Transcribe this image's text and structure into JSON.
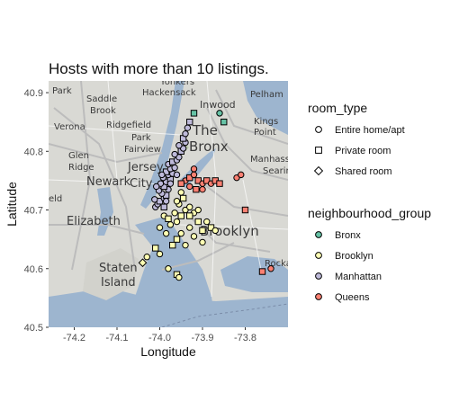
{
  "chart_data": {
    "type": "scatter",
    "title": "Hosts with more than 10 listings.",
    "xlabel": "Longitude",
    "ylabel": "Latitude",
    "xlim": [
      -74.26,
      -73.7
    ],
    "ylim": [
      40.5,
      40.92
    ],
    "x_ticks": [
      -74.2,
      -74.1,
      -74.0,
      -73.9,
      -73.8
    ],
    "x_tick_labels": [
      "-74.2",
      "-74.1",
      "-74.0",
      "-73.9",
      "-73.8"
    ],
    "y_ticks": [
      40.5,
      40.6,
      40.7,
      40.8,
      40.9
    ],
    "y_tick_labels": [
      "40.5",
      "40.6",
      "40.7",
      "40.8",
      "40.9"
    ],
    "grid": false,
    "background": "street map",
    "legend_position": "right",
    "legends": [
      {
        "title": "room_type",
        "kind": "shape",
        "entries": [
          {
            "label": "Entire home/apt",
            "shape": "circle"
          },
          {
            "label": "Private room",
            "shape": "square"
          },
          {
            "label": "Shared room",
            "shape": "diamond"
          }
        ]
      },
      {
        "title": "neighbourhood_group",
        "kind": "color",
        "entries": [
          {
            "label": "Bronx",
            "color": "#66c2a5"
          },
          {
            "label": "Brooklyn",
            "color": "#ffffb3"
          },
          {
            "label": "Manhattan",
            "color": "#bebada"
          },
          {
            "label": "Queens",
            "color": "#fb8072"
          }
        ]
      }
    ],
    "series": [
      {
        "name": "Manhattan",
        "color": "#bebada",
        "points": [
          {
            "x": -74.01,
            "y": 40.705,
            "shape": "circle"
          },
          {
            "x": -74.005,
            "y": 40.71,
            "shape": "circle"
          },
          {
            "x": -74.0,
            "y": 40.715,
            "shape": "square"
          },
          {
            "x": -74.012,
            "y": 40.718,
            "shape": "circle"
          },
          {
            "x": -73.99,
            "y": 40.72,
            "shape": "circle"
          },
          {
            "x": -73.985,
            "y": 40.725,
            "shape": "square"
          },
          {
            "x": -73.995,
            "y": 40.728,
            "shape": "circle"
          },
          {
            "x": -74.002,
            "y": 40.733,
            "shape": "circle"
          },
          {
            "x": -73.98,
            "y": 40.735,
            "shape": "circle"
          },
          {
            "x": -73.99,
            "y": 40.74,
            "shape": "square"
          },
          {
            "x": -73.998,
            "y": 40.745,
            "shape": "circle"
          },
          {
            "x": -73.985,
            "y": 40.748,
            "shape": "circle"
          },
          {
            "x": -73.975,
            "y": 40.752,
            "shape": "square"
          },
          {
            "x": -73.992,
            "y": 40.755,
            "shape": "circle"
          },
          {
            "x": -73.98,
            "y": 40.76,
            "shape": "circle"
          },
          {
            "x": -73.97,
            "y": 40.762,
            "shape": "circle"
          },
          {
            "x": -73.985,
            "y": 40.765,
            "shape": "square"
          },
          {
            "x": -73.975,
            "y": 40.77,
            "shape": "circle"
          },
          {
            "x": -73.965,
            "y": 40.772,
            "shape": "circle"
          },
          {
            "x": -73.98,
            "y": 40.778,
            "shape": "circle"
          },
          {
            "x": -73.97,
            "y": 40.782,
            "shape": "square"
          },
          {
            "x": -73.96,
            "y": 40.785,
            "shape": "circle"
          },
          {
            "x": -73.955,
            "y": 40.79,
            "shape": "circle"
          },
          {
            "x": -73.965,
            "y": 40.795,
            "shape": "circle"
          },
          {
            "x": -73.95,
            "y": 40.8,
            "shape": "square"
          },
          {
            "x": -73.945,
            "y": 40.805,
            "shape": "circle"
          },
          {
            "x": -73.955,
            "y": 40.81,
            "shape": "circle"
          },
          {
            "x": -73.94,
            "y": 40.815,
            "shape": "circle"
          },
          {
            "x": -73.945,
            "y": 40.822,
            "shape": "square"
          },
          {
            "x": -73.94,
            "y": 40.83,
            "shape": "circle"
          },
          {
            "x": -73.935,
            "y": 40.84,
            "shape": "circle"
          },
          {
            "x": -73.93,
            "y": 40.85,
            "shape": "square"
          },
          {
            "x": -73.975,
            "y": 40.745,
            "shape": "circle"
          },
          {
            "x": -73.96,
            "y": 40.76,
            "shape": "circle"
          },
          {
            "x": -73.99,
            "y": 40.705,
            "shape": "square"
          },
          {
            "x": -73.985,
            "y": 40.715,
            "shape": "circle"
          },
          {
            "x": -73.995,
            "y": 40.76,
            "shape": "circle"
          },
          {
            "x": -74.008,
            "y": 40.74,
            "shape": "circle"
          }
        ]
      },
      {
        "name": "Brooklyn",
        "color": "#ffffb3",
        "points": [
          {
            "x": -73.99,
            "y": 40.69,
            "shape": "circle"
          },
          {
            "x": -73.98,
            "y": 40.685,
            "shape": "square"
          },
          {
            "x": -73.975,
            "y": 40.675,
            "shape": "circle"
          },
          {
            "x": -73.96,
            "y": 40.68,
            "shape": "circle"
          },
          {
            "x": -73.95,
            "y": 40.69,
            "shape": "square"
          },
          {
            "x": -73.94,
            "y": 40.7,
            "shape": "circle"
          },
          {
            "x": -73.955,
            "y": 40.71,
            "shape": "circle"
          },
          {
            "x": -73.945,
            "y": 40.72,
            "shape": "square"
          },
          {
            "x": -73.93,
            "y": 40.705,
            "shape": "circle"
          },
          {
            "x": -73.92,
            "y": 40.695,
            "shape": "circle"
          },
          {
            "x": -73.91,
            "y": 40.68,
            "shape": "square"
          },
          {
            "x": -73.93,
            "y": 40.67,
            "shape": "circle"
          },
          {
            "x": -73.95,
            "y": 40.66,
            "shape": "circle"
          },
          {
            "x": -73.96,
            "y": 40.65,
            "shape": "square"
          },
          {
            "x": -73.985,
            "y": 40.66,
            "shape": "circle"
          },
          {
            "x": -74.0,
            "y": 40.67,
            "shape": "circle"
          },
          {
            "x": -73.97,
            "y": 40.64,
            "shape": "square"
          },
          {
            "x": -73.94,
            "y": 40.64,
            "shape": "circle"
          },
          {
            "x": -73.92,
            "y": 40.655,
            "shape": "circle"
          },
          {
            "x": -73.9,
            "y": 40.665,
            "shape": "square"
          },
          {
            "x": -73.89,
            "y": 40.68,
            "shape": "circle"
          },
          {
            "x": -73.91,
            "y": 40.7,
            "shape": "circle"
          },
          {
            "x": -73.88,
            "y": 40.67,
            "shape": "square"
          },
          {
            "x": -73.87,
            "y": 40.665,
            "shape": "circle"
          },
          {
            "x": -73.95,
            "y": 40.73,
            "shape": "circle"
          },
          {
            "x": -73.96,
            "y": 40.715,
            "shape": "circle"
          },
          {
            "x": -74.01,
            "y": 40.635,
            "shape": "square"
          },
          {
            "x": -74.0,
            "y": 40.625,
            "shape": "circle"
          },
          {
            "x": -74.03,
            "y": 40.62,
            "shape": "circle"
          },
          {
            "x": -74.04,
            "y": 40.61,
            "shape": "diamond"
          },
          {
            "x": -73.98,
            "y": 40.6,
            "shape": "circle"
          },
          {
            "x": -73.96,
            "y": 40.59,
            "shape": "square"
          },
          {
            "x": -73.955,
            "y": 40.585,
            "shape": "circle"
          },
          {
            "x": -73.9,
            "y": 40.645,
            "shape": "circle"
          },
          {
            "x": -73.93,
            "y": 40.69,
            "shape": "square"
          },
          {
            "x": -73.965,
            "y": 40.695,
            "shape": "circle"
          }
        ]
      },
      {
        "name": "Queens",
        "color": "#fb8072",
        "points": [
          {
            "x": -73.94,
            "y": 40.75,
            "shape": "circle"
          },
          {
            "x": -73.93,
            "y": 40.755,
            "shape": "square"
          },
          {
            "x": -73.92,
            "y": 40.76,
            "shape": "circle"
          },
          {
            "x": -73.91,
            "y": 40.75,
            "shape": "square"
          },
          {
            "x": -73.9,
            "y": 40.745,
            "shape": "circle"
          },
          {
            "x": -73.89,
            "y": 40.75,
            "shape": "square"
          },
          {
            "x": -73.88,
            "y": 40.745,
            "shape": "circle"
          },
          {
            "x": -73.87,
            "y": 40.75,
            "shape": "square"
          },
          {
            "x": -73.93,
            "y": 40.74,
            "shape": "circle"
          },
          {
            "x": -73.915,
            "y": 40.735,
            "shape": "square"
          },
          {
            "x": -73.9,
            "y": 40.735,
            "shape": "circle"
          },
          {
            "x": -73.86,
            "y": 40.745,
            "shape": "square"
          },
          {
            "x": -73.82,
            "y": 40.755,
            "shape": "circle"
          },
          {
            "x": -73.81,
            "y": 40.76,
            "shape": "circle"
          },
          {
            "x": -73.8,
            "y": 40.7,
            "shape": "square"
          },
          {
            "x": -73.76,
            "y": 40.595,
            "shape": "square"
          },
          {
            "x": -73.74,
            "y": 40.6,
            "shape": "circle"
          },
          {
            "x": -73.92,
            "y": 40.77,
            "shape": "circle"
          },
          {
            "x": -73.95,
            "y": 40.745,
            "shape": "square"
          }
        ]
      },
      {
        "name": "Bronx",
        "color": "#66c2a5",
        "points": [
          {
            "x": -73.92,
            "y": 40.865,
            "shape": "square"
          },
          {
            "x": -73.86,
            "y": 40.865,
            "shape": "circle"
          },
          {
            "x": -73.85,
            "y": 40.85,
            "shape": "square"
          }
        ]
      }
    ]
  }
}
